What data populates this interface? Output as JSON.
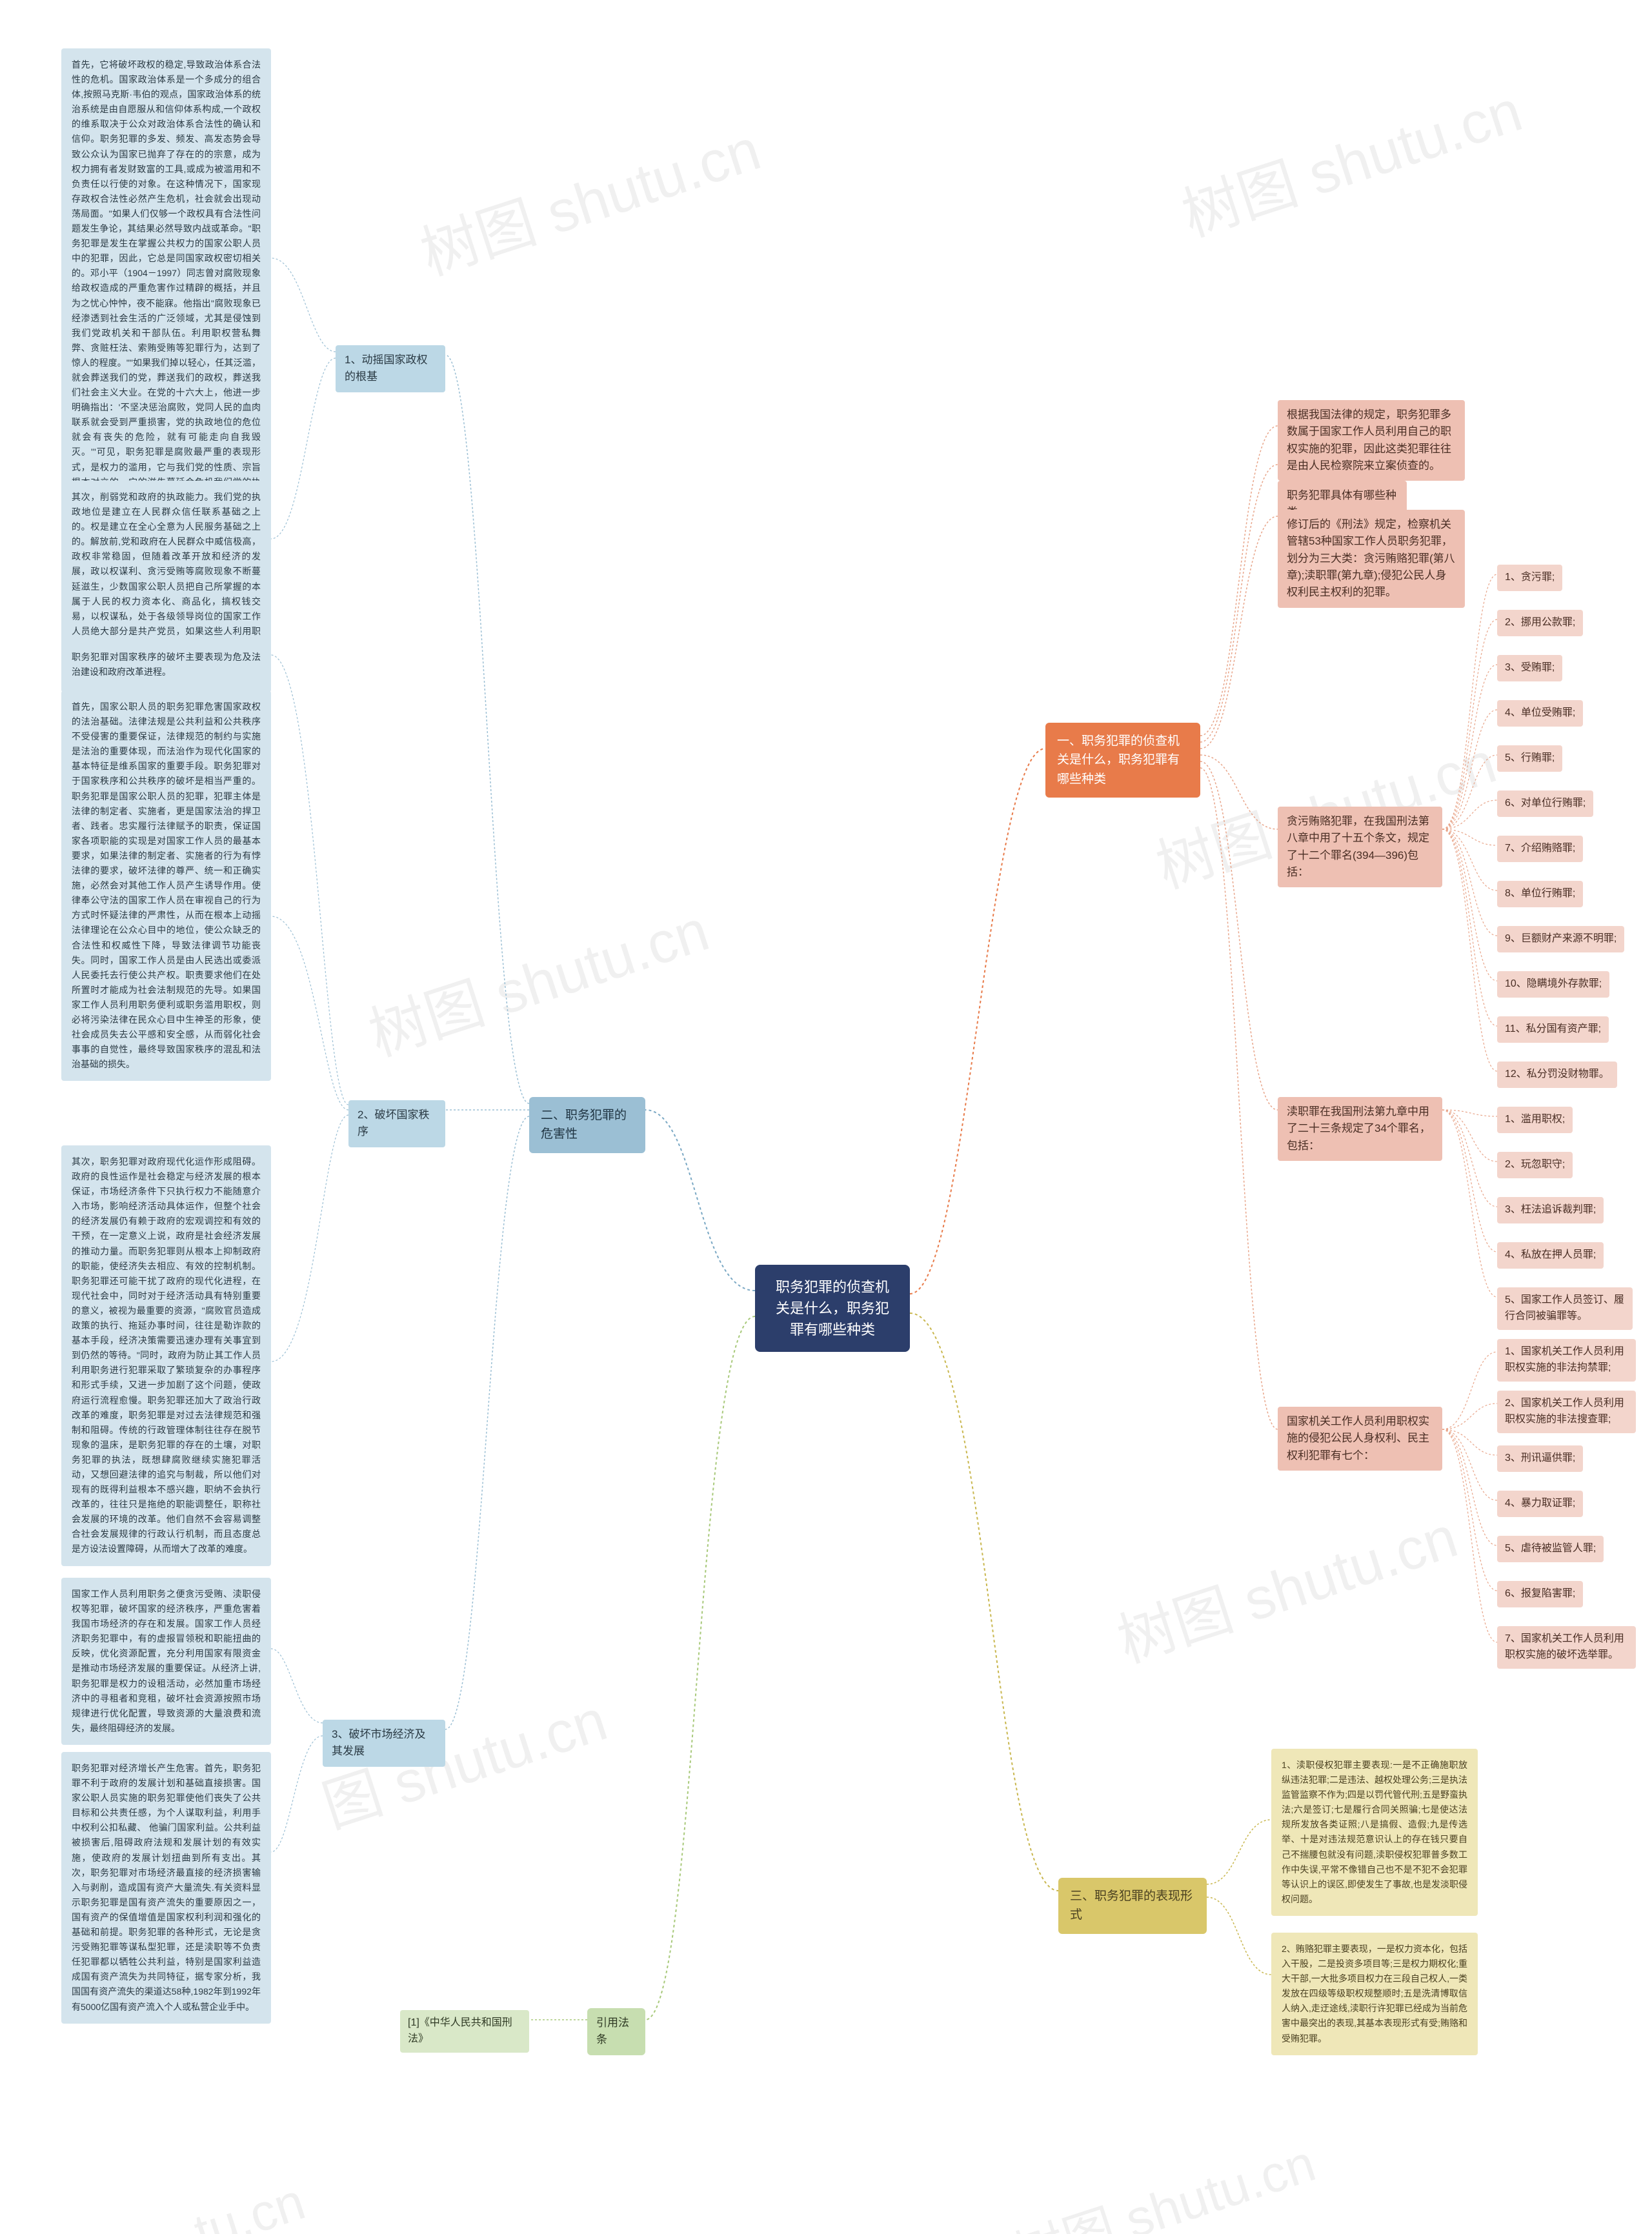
{
  "watermarks": [
    "树图 shutu.cn",
    "树图 shutu.cn",
    "树图 shutu.cn",
    "树图 shutu.cn",
    "树图 shutu.cn",
    "图 shutu.cn",
    "tu.cn"
  ],
  "root": "职务犯罪的侦查机关是什么，职务犯罪有哪些种类",
  "branch1": {
    "title": "一、职务犯罪的侦查机关是什么，职务犯罪有哪些种类",
    "sub1": "根据我国法律的规定，职务犯罪多数属于国家工作人员利用自己的职权实施的犯罪，因此这类犯罪往往是由人民检察院来立案侦查的。",
    "sub2": "职务犯罪具体有哪些种类",
    "sub3": "修订后的《刑法》规定，检察机关管辖53种国家工作人员职务犯罪，划分为三大类：贪污贿赂犯罪(第八章);渎职罪(第九章);侵犯公民人身权利民主权利的犯罪。",
    "taintGroup": {
      "header": "贪污贿赂犯罪，在我国刑法第八章中用了十五个条文，规定了十二个罪名(394—396)包括：",
      "items": [
        "1、贪污罪;",
        "2、挪用公款罪;",
        "3、受贿罪;",
        "4、单位受贿罪;",
        "5、行贿罪;",
        "6、对单位行贿罪;",
        "7、介绍贿赂罪;",
        "8、单位行贿罪;",
        "9、巨额财产来源不明罪;",
        "10、隐瞒境外存款罪;",
        "11、私分国有资产罪;",
        "12、私分罚没财物罪。"
      ]
    },
    "derelictGroup": {
      "header": "渎职罪在我国刑法第九章中用了二十三条规定了34个罪名，包括：",
      "items": [
        "1、滥用职权;",
        "2、玩忽职守;",
        "3、枉法追诉裁判罪;",
        "4、私放在押人员罪;",
        "5、国家工作人员签订、履行合同被骗罪等。"
      ]
    },
    "rightsGroup": {
      "header": "国家机关工作人员利用职权实施的侵犯公民人身权利、民主权利犯罪有七个：",
      "items": [
        "1、国家机关工作人员利用职权实施的非法拘禁罪;",
        "2、国家机关工作人员利用职权实施的非法搜查罪;",
        "3、刑讯逼供罪;",
        "4、暴力取证罪;",
        "5、虐待被监管人罪;",
        "6、报复陷害罪;",
        "7、国家机关工作人员利用职权实施的破坏选举罪。"
      ]
    }
  },
  "branch2": {
    "title": "二、职务犯罪的危害性",
    "sub1": {
      "title": "1、动摇国家政权的根基",
      "p1": "首先，它将破坏政权的稳定,导致政治体系合法性的危机。国家政治体系是一个多成分的组合体,按照马克斯·韦伯的观点，国家政治体系的统治系统是由自愿服从和信仰体系构成,一个政权的维系取决于公众对政治体系合法性的确认和信仰。职务犯罪的多发、频发、高发态势会导致公众认为国家已抛弃了存在的的宗意，成为权力拥有者发财致富的工具,或成为被滥用和不负责任以行使的对象。在这种情况下，国家现存政权合法性必然产生危机，社会就会出现动荡局面。\"如果人们仅够一个政权具有合法性问题发生争论，其结果必然导致内战或革命。\"职务犯罪是发生在掌握公共权力的国家公职人员中的犯罪，因此，它总是同国家政权密切相关的。邓小平（1904－1997）同志曾对腐败现象给政权造成的严重危害作过精辟的概括，并且为之忧心忡忡，夜不能寐。他指出\"腐败现象已经渗透到社会生活的广泛领域，尤其是侵蚀到我们党政机关和干部队伍。利用职权营私舞弊、贪赃枉法、索贿受贿等犯罪行为，达到了惊人的程度。\"\"如果我们掉以轻心，任其泛滥，就会葬送我们的党，葬送我们的政权，葬送我们社会主义大业。在党的十六大上，他进一步明确指出：'不坚决惩治腐败，党同人民的血肉联系就会受到严重损害，党的执政地位的危位就会有丧失的危险，就有可能走向自我毁灭。'\"可见，职务犯罪是腐败最严重的表现形式，是权力的滥用，它与我们党的性质、宗旨根本对立的。它的滋生蔓延会危机我们党的执政地位，国家政权的稳定，导致政治危机。",
      "p2": "其次，削弱党和政府的执政能力。我们党的执政地位是建立在人民群众信任联系基础之上的。权是建立在全心全意为人民服务基础之上的。解放前,党和政府在人民群众中威信极高，政权非常稳固，但随着改革开放和经济的发展，政以权谋利、贪污受贿等腐败现象不断蔓延滋生，少数国家公职人员把自己所掌握的本属于人民的权力资本化、商品化，搞权钱交易，以权谋私，处于各级领导岗位的国家工作人员绝大部分是共产党员，如果这些人利用职权之便牟取个人私利或听谋取职责，必然大大地降低党的执政威信，破坏党和政府的执政能力。"
    },
    "sub2": {
      "title": "2、破坏国家秩序",
      "p0": "职务犯罪对国家秩序的破坏主要表现为危及法治建设和政府改革进程。",
      "p1": "首先，国家公职人员的职务犯罪危害国家政权的法治基础。法律法规是公共利益和公共秩序不受侵害的重要保证，法律规范的制约与实施是法治的重要体现，而法治作为现代化国家的基本特征是维系国家的重要手段。职务犯罪对于国家秩序和公共秩序的破坏是相当严重的。职务犯罪是国家公职人员的犯罪，犯罪主体是法律的制定者、实施者，更是国家法治的捍卫者、践者。忠实履行法律赋予的职责，保证国家各项职能的实现是对国家工作人员的最基本要求，如果法律的制定者、实施者的行为有悖法律的要求，破坏法律的尊严、统一和正确实施，必然会对其他工作人员产生诱导作用。使律奉公守法的国家工作人员在审视自己的行为方式时怀疑法律的严肃性，从而在根本上动摇法律理论在公众心目中的地位，使公众缺乏的合法性和权威性下降，导致法律调节功能丧失。同时，国家工作人员是由人民选出或委派人民委托去行使公共产权。职责要求他们在处所置时才能成为社会法制规范的先导。如果国家工作人员利用职务便利或职务滥用职权，则必将污染法律在民众心目中生神圣的形象，使社会成员失去公平感和安全感，从而弱化社会事事的自觉性，最终导致国家秩序的混乱和法治基础的损失。",
      "p2": "其次，职务犯罪对政府现代化运作形成阻碍。政府的良性运作是社会稳定与经济发展的根本保证，市场经济条件下只执行权力不能随意介入市场，影响经济活动具体运作，但整个社会的经济发展仍有赖于政府的宏观调控和有效的干预，在一定意义上说，政府是社会经济发展的推动力量。而职务犯罪则从根本上抑制政府的职能，使经济失去相应、有效的控制机制。职务犯罪还可能干扰了政府的现代化进程，在现代社会中，同时对于经济活动具有特别重要的意义，被视为最重要的资源，\"腐败官员造成政策的执行、拖延办事时间，往往是勒诈款的基本手段，经济决策需要迅速办理有关事宜到到仍然的等待。\"同时，政府为防止其工作人员利用职务进行犯罪采取了繁琐复杂的办事程序和形式手续，又进一步加剧了这个问题，使政府运行流程愈慢。职务犯罪还加大了政治行政改革的难度，职务犯罪是对过去法律规范和强制和阻碍。传统的行政管理体制往往存在脱节现象的温床，是职务犯罪的存在的土壤，对职务犯罪的执法，既想肆腐败继续实施犯罪活动，又想回避法律的追究与制裁，所以他们对现有的既得利益根本不感兴趣，职纳不会执行改革的，往往只是拖绝的职能调整任，职称社会发展的环境的改革。他们自然不会容易调整合社会发展规律的行政认行机制，而且态度总是方设法设置障碍，从而增大了改革的难度。"
    },
    "sub3": {
      "title": "3、破坏市场经济及其发展",
      "p1": "国家工作人员利用职务之便贪污受贿、渎职侵权等犯罪，破坏国家的经济秩序，严重危害着我国市场经济的存在和发展。国家工作人员经济职务犯罪中，有的虚报冒领税和职能扭曲的反映，优化资源配置，充分利用国家有限资金是推动市场经济发展的重要保证。从经济上讲,职务犯罪是权力的设租活动，必然加重市场经济中的寻租者和竞租，破坏社会资源按照市场规律进行优化配置，导致资源的大量浪费和流失，最终阻碍经济的发展。",
      "p2": "职务犯罪对经济增长产生危害。首先，职务犯罪不利于政府的发展计划和基础直接损害。国家公职人员实施的职务犯罪使他们丧失了公共目标和公共责任感，为个人谋取利益，利用手中权利公扣私藏、 他骗门国家利益。公共利益被损害后,阻碍政府法规和发展计划的有效实施，使政府的发展计划扭曲到所有支出。其次，职务犯罪对市场经济最直接的经济损害输入与剥削，造成国有资产大量流失.有关资料显示职务犯罪是国有资产流失的重要原因之一，国有资产的保值增值是国家权利利润和强化的基础和前提。职务犯罪的各种形式，无论是贪污受贿犯罪等谋私型犯罪，还是渎职等不负责任犯罪都以牺牲公共利益，特别是国家利益造成国有资产流失为共同特征，据专家分析，我国国有资产流失的渠道达58种,1982年到1992年有5000亿国有资产流入个人或私营企业手中。"
    }
  },
  "branch3": {
    "title": "三、职务犯罪的表现形式",
    "p1": "1、渎职侵权犯罪主要表现:一是不正确施职放纵违法犯罪;二是违法、越权处理公务;三是执法监管监察不作为;四是以罚代管代刑;五是野蛮执法;六是签订;七是履行合同关照骗;七是使达法规所发放各类证照;八是搞假、造假;九是传选举、十是对违法规范意识认上的存在钱只要自己不揣腰包就没有问题,渎职侵权犯罪普多数工作中失误,平常不像错自己也不是不犯不会犯罪等认识上的误区,即使发生了事故,也是发淡职侵权问题。",
    "p2": "2、贿赂犯罪主要表现，一是权力资本化，包括入干股，二是投资多项目等;三是权力期权化;重大干部,一大批多项目权力在三段自己权人,一类发放在四级等级职权规整顺时;五是洗清博取信人纳入,走迂途线,渎职行许犯罪已经成为当前危害中最突出的表现,其基本表现形式有受;贿赂和受贿犯罪。"
  },
  "branch4": {
    "title": "引用法条",
    "item": "[1]《中华人民共和国刑法》"
  },
  "colors": {
    "root": "#2c3e6b",
    "branch1": "#e87b4a",
    "branch2": "#7aa8c4",
    "branch3": "#d9c76a",
    "branch4": "#a8c97a"
  }
}
